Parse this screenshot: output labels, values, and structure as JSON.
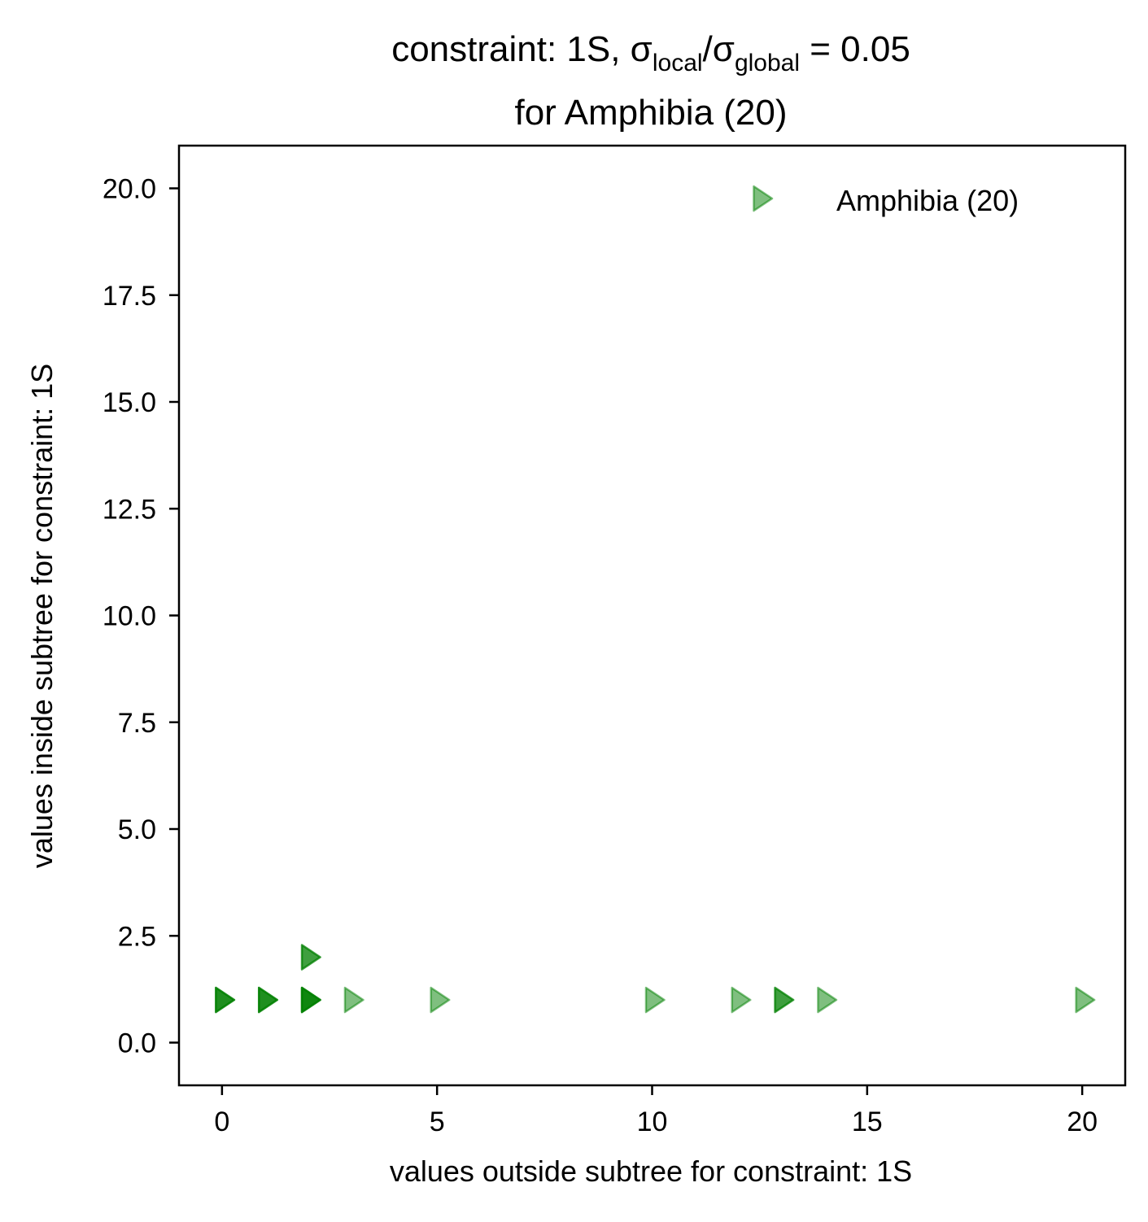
{
  "chart_data": {
    "type": "scatter",
    "title_prefix": "constraint: 1S, σ",
    "title_sub1": "local",
    "title_mid": "/σ",
    "title_sub2": "global",
    "title_suffix": " =  0.05",
    "title_line2": "for Amphibia (20)",
    "xlabel": "values outside subtree for constraint: 1S",
    "ylabel": "values inside subtree for constraint: 1S",
    "xlim": [
      -1,
      21
    ],
    "ylim": [
      -1,
      21
    ],
    "xticks": [
      0,
      5,
      10,
      15,
      20
    ],
    "yticks": [
      0.0,
      2.5,
      5.0,
      7.5,
      10.0,
      12.5,
      15.0,
      17.5,
      20.0
    ],
    "xtick_labels": [
      "0",
      "5",
      "10",
      "15",
      "20"
    ],
    "ytick_labels": [
      "0.0",
      "2.5",
      "5.0",
      "7.5",
      "10.0",
      "12.5",
      "15.0",
      "17.5",
      "20.0"
    ],
    "marker": "triangle-right",
    "color": "#008000",
    "alpha": 0.5,
    "legend_position": "top-right",
    "series": [
      {
        "name": "Amphibia (20)",
        "points": [
          {
            "x": 0,
            "y": 1
          },
          {
            "x": 0,
            "y": 1
          },
          {
            "x": 0,
            "y": 1
          },
          {
            "x": 1,
            "y": 1
          },
          {
            "x": 1,
            "y": 1
          },
          {
            "x": 1,
            "y": 1
          },
          {
            "x": 2,
            "y": 1
          },
          {
            "x": 2,
            "y": 1
          },
          {
            "x": 2,
            "y": 1
          },
          {
            "x": 2,
            "y": 1
          },
          {
            "x": 2,
            "y": 2
          },
          {
            "x": 2,
            "y": 2
          },
          {
            "x": 3,
            "y": 1
          },
          {
            "x": 5,
            "y": 1
          },
          {
            "x": 10,
            "y": 1
          },
          {
            "x": 12,
            "y": 1
          },
          {
            "x": 13,
            "y": 1
          },
          {
            "x": 13,
            "y": 1
          },
          {
            "x": 14,
            "y": 1
          },
          {
            "x": 20,
            "y": 1
          }
        ]
      }
    ]
  }
}
